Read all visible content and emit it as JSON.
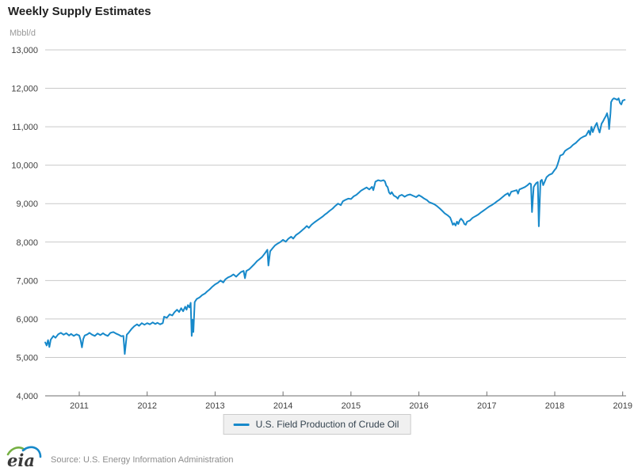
{
  "page": {
    "title": "Weekly Supply Estimates",
    "unit": "Mbbl/d",
    "logo_text": "eia",
    "source": "Source: U.S. Energy Information Administration"
  },
  "legend": {
    "items": [
      {
        "label": "U.S. Field Production of Crude Oil",
        "color": "#1789ca"
      }
    ]
  },
  "colors": {
    "line": "#1789ca",
    "grid": "#c9c9c9",
    "axis": "#6e6e6e",
    "tick_label": "#404040",
    "legend_bg": "#f0f0f0",
    "source_text": "#8c8c8c",
    "logo_green": "#76b043",
    "logo_blue": "#1789ca"
  },
  "chart_data": {
    "type": "line",
    "title": "Weekly Supply Estimates",
    "ylabel": "Mbbl/d",
    "xlabel": "",
    "grid": true,
    "legend_position": "bottom-center",
    "xlim": [
      2010.5,
      2019.1
    ],
    "ylim": [
      4000,
      13000
    ],
    "x_ticks": [
      2011,
      2012,
      2013,
      2014,
      2015,
      2016,
      2017,
      2018,
      2019
    ],
    "y_ticks": [
      4000,
      5000,
      6000,
      7000,
      8000,
      9000,
      10000,
      11000,
      12000,
      13000
    ],
    "series": [
      {
        "name": "U.S. Field Production of Crude Oil",
        "color": "#1789ca",
        "points": [
          [
            2010.5,
            5390
          ],
          [
            2010.52,
            5310
          ],
          [
            2010.54,
            5450
          ],
          [
            2010.56,
            5270
          ],
          [
            2010.58,
            5460
          ],
          [
            2010.62,
            5560
          ],
          [
            2010.65,
            5510
          ],
          [
            2010.69,
            5600
          ],
          [
            2010.73,
            5640
          ],
          [
            2010.77,
            5590
          ],
          [
            2010.81,
            5630
          ],
          [
            2010.85,
            5570
          ],
          [
            2010.88,
            5610
          ],
          [
            2010.92,
            5560
          ],
          [
            2010.96,
            5600
          ],
          [
            2011.0,
            5570
          ],
          [
            2011.02,
            5450
          ],
          [
            2011.04,
            5260
          ],
          [
            2011.06,
            5480
          ],
          [
            2011.08,
            5570
          ],
          [
            2011.12,
            5600
          ],
          [
            2011.15,
            5640
          ],
          [
            2011.19,
            5590
          ],
          [
            2011.23,
            5560
          ],
          [
            2011.27,
            5620
          ],
          [
            2011.31,
            5580
          ],
          [
            2011.35,
            5630
          ],
          [
            2011.38,
            5590
          ],
          [
            2011.42,
            5560
          ],
          [
            2011.46,
            5640
          ],
          [
            2011.5,
            5660
          ],
          [
            2011.54,
            5620
          ],
          [
            2011.58,
            5590
          ],
          [
            2011.62,
            5550
          ],
          [
            2011.65,
            5560
          ],
          [
            2011.67,
            5090
          ],
          [
            2011.7,
            5590
          ],
          [
            2011.73,
            5650
          ],
          [
            2011.77,
            5740
          ],
          [
            2011.81,
            5810
          ],
          [
            2011.85,
            5860
          ],
          [
            2011.88,
            5820
          ],
          [
            2011.92,
            5890
          ],
          [
            2011.96,
            5850
          ],
          [
            2012.0,
            5890
          ],
          [
            2012.04,
            5860
          ],
          [
            2012.08,
            5910
          ],
          [
            2012.12,
            5870
          ],
          [
            2012.15,
            5900
          ],
          [
            2012.19,
            5860
          ],
          [
            2012.23,
            5890
          ],
          [
            2012.25,
            6060
          ],
          [
            2012.29,
            6030
          ],
          [
            2012.33,
            6120
          ],
          [
            2012.37,
            6090
          ],
          [
            2012.4,
            6170
          ],
          [
            2012.44,
            6240
          ],
          [
            2012.47,
            6180
          ],
          [
            2012.5,
            6280
          ],
          [
            2012.53,
            6200
          ],
          [
            2012.56,
            6320
          ],
          [
            2012.58,
            6240
          ],
          [
            2012.6,
            6360
          ],
          [
            2012.62,
            6300
          ],
          [
            2012.64,
            6420
          ],
          [
            2012.655,
            5560
          ],
          [
            2012.67,
            5980
          ],
          [
            2012.68,
            5660
          ],
          [
            2012.7,
            6440
          ],
          [
            2012.73,
            6520
          ],
          [
            2012.77,
            6560
          ],
          [
            2012.81,
            6620
          ],
          [
            2012.85,
            6660
          ],
          [
            2012.88,
            6710
          ],
          [
            2012.92,
            6770
          ],
          [
            2012.96,
            6840
          ],
          [
            2013.0,
            6900
          ],
          [
            2013.04,
            6940
          ],
          [
            2013.08,
            7000
          ],
          [
            2013.12,
            6950
          ],
          [
            2013.15,
            7030
          ],
          [
            2013.19,
            7080
          ],
          [
            2013.23,
            7110
          ],
          [
            2013.27,
            7160
          ],
          [
            2013.31,
            7100
          ],
          [
            2013.35,
            7170
          ],
          [
            2013.38,
            7220
          ],
          [
            2013.42,
            7250
          ],
          [
            2013.44,
            7060
          ],
          [
            2013.46,
            7250
          ],
          [
            2013.5,
            7290
          ],
          [
            2013.54,
            7360
          ],
          [
            2013.58,
            7430
          ],
          [
            2013.62,
            7510
          ],
          [
            2013.65,
            7550
          ],
          [
            2013.69,
            7610
          ],
          [
            2013.73,
            7700
          ],
          [
            2013.77,
            7800
          ],
          [
            2013.785,
            7390
          ],
          [
            2013.81,
            7760
          ],
          [
            2013.85,
            7850
          ],
          [
            2013.88,
            7910
          ],
          [
            2013.92,
            7960
          ],
          [
            2013.96,
            8000
          ],
          [
            2014.0,
            8060
          ],
          [
            2014.04,
            8010
          ],
          [
            2014.08,
            8090
          ],
          [
            2014.12,
            8140
          ],
          [
            2014.15,
            8090
          ],
          [
            2014.19,
            8180
          ],
          [
            2014.23,
            8230
          ],
          [
            2014.27,
            8290
          ],
          [
            2014.31,
            8350
          ],
          [
            2014.35,
            8420
          ],
          [
            2014.38,
            8370
          ],
          [
            2014.42,
            8450
          ],
          [
            2014.46,
            8510
          ],
          [
            2014.5,
            8560
          ],
          [
            2014.54,
            8610
          ],
          [
            2014.58,
            8660
          ],
          [
            2014.62,
            8720
          ],
          [
            2014.65,
            8760
          ],
          [
            2014.69,
            8820
          ],
          [
            2014.73,
            8870
          ],
          [
            2014.77,
            8940
          ],
          [
            2014.81,
            9000
          ],
          [
            2014.85,
            8960
          ],
          [
            2014.88,
            9060
          ],
          [
            2014.92,
            9100
          ],
          [
            2014.96,
            9130
          ],
          [
            2015.0,
            9120
          ],
          [
            2015.04,
            9190
          ],
          [
            2015.08,
            9230
          ],
          [
            2015.12,
            9290
          ],
          [
            2015.15,
            9340
          ],
          [
            2015.19,
            9380
          ],
          [
            2015.23,
            9420
          ],
          [
            2015.27,
            9370
          ],
          [
            2015.31,
            9440
          ],
          [
            2015.33,
            9350
          ],
          [
            2015.36,
            9570
          ],
          [
            2015.4,
            9610
          ],
          [
            2015.44,
            9590
          ],
          [
            2015.48,
            9610
          ],
          [
            2015.5,
            9580
          ],
          [
            2015.52,
            9470
          ],
          [
            2015.54,
            9430
          ],
          [
            2015.56,
            9290
          ],
          [
            2015.58,
            9250
          ],
          [
            2015.6,
            9300
          ],
          [
            2015.63,
            9210
          ],
          [
            2015.67,
            9170
          ],
          [
            2015.69,
            9130
          ],
          [
            2015.71,
            9200
          ],
          [
            2015.75,
            9230
          ],
          [
            2015.79,
            9180
          ],
          [
            2015.83,
            9220
          ],
          [
            2015.87,
            9240
          ],
          [
            2015.92,
            9200
          ],
          [
            2015.96,
            9170
          ],
          [
            2016.0,
            9220
          ],
          [
            2016.04,
            9180
          ],
          [
            2016.08,
            9130
          ],
          [
            2016.12,
            9090
          ],
          [
            2016.15,
            9040
          ],
          [
            2016.19,
            9010
          ],
          [
            2016.23,
            8980
          ],
          [
            2016.27,
            8930
          ],
          [
            2016.31,
            8870
          ],
          [
            2016.35,
            8800
          ],
          [
            2016.38,
            8750
          ],
          [
            2016.42,
            8700
          ],
          [
            2016.46,
            8640
          ],
          [
            2016.48,
            8550
          ],
          [
            2016.5,
            8450
          ],
          [
            2016.52,
            8490
          ],
          [
            2016.54,
            8430
          ],
          [
            2016.56,
            8530
          ],
          [
            2016.58,
            8470
          ],
          [
            2016.6,
            8560
          ],
          [
            2016.62,
            8610
          ],
          [
            2016.65,
            8550
          ],
          [
            2016.67,
            8470
          ],
          [
            2016.69,
            8450
          ],
          [
            2016.71,
            8530
          ],
          [
            2016.75,
            8560
          ],
          [
            2016.79,
            8630
          ],
          [
            2016.83,
            8670
          ],
          [
            2016.87,
            8710
          ],
          [
            2016.92,
            8780
          ],
          [
            2016.96,
            8830
          ],
          [
            2017.0,
            8880
          ],
          [
            2017.04,
            8930
          ],
          [
            2017.08,
            8970
          ],
          [
            2017.12,
            9020
          ],
          [
            2017.15,
            9060
          ],
          [
            2017.19,
            9110
          ],
          [
            2017.23,
            9170
          ],
          [
            2017.27,
            9230
          ],
          [
            2017.31,
            9270
          ],
          [
            2017.33,
            9200
          ],
          [
            2017.36,
            9310
          ],
          [
            2017.4,
            9330
          ],
          [
            2017.44,
            9350
          ],
          [
            2017.46,
            9260
          ],
          [
            2017.48,
            9370
          ],
          [
            2017.52,
            9400
          ],
          [
            2017.56,
            9430
          ],
          [
            2017.6,
            9480
          ],
          [
            2017.63,
            9530
          ],
          [
            2017.65,
            9510
          ],
          [
            2017.665,
            8780
          ],
          [
            2017.69,
            9430
          ],
          [
            2017.71,
            9490
          ],
          [
            2017.73,
            9540
          ],
          [
            2017.75,
            9560
          ],
          [
            2017.765,
            8410
          ],
          [
            2017.79,
            9590
          ],
          [
            2017.81,
            9620
          ],
          [
            2017.83,
            9480
          ],
          [
            2017.85,
            9560
          ],
          [
            2017.88,
            9690
          ],
          [
            2017.92,
            9750
          ],
          [
            2017.96,
            9780
          ],
          [
            2018.0,
            9880
          ],
          [
            2018.02,
            9920
          ],
          [
            2018.04,
            10010
          ],
          [
            2018.06,
            10120
          ],
          [
            2018.08,
            10250
          ],
          [
            2018.12,
            10280
          ],
          [
            2018.15,
            10370
          ],
          [
            2018.19,
            10420
          ],
          [
            2018.23,
            10460
          ],
          [
            2018.27,
            10530
          ],
          [
            2018.31,
            10580
          ],
          [
            2018.35,
            10650
          ],
          [
            2018.38,
            10700
          ],
          [
            2018.42,
            10740
          ],
          [
            2018.46,
            10770
          ],
          [
            2018.5,
            10900
          ],
          [
            2018.52,
            10790
          ],
          [
            2018.54,
            11000
          ],
          [
            2018.56,
            10860
          ],
          [
            2018.58,
            10960
          ],
          [
            2018.6,
            11040
          ],
          [
            2018.62,
            11100
          ],
          [
            2018.64,
            10950
          ],
          [
            2018.66,
            10850
          ],
          [
            2018.69,
            11080
          ],
          [
            2018.71,
            11140
          ],
          [
            2018.73,
            11210
          ],
          [
            2018.75,
            11270
          ],
          [
            2018.77,
            11350
          ],
          [
            2018.79,
            11190
          ],
          [
            2018.8,
            10940
          ],
          [
            2018.82,
            11350
          ],
          [
            2018.83,
            11640
          ],
          [
            2018.85,
            11710
          ],
          [
            2018.87,
            11740
          ],
          [
            2018.9,
            11720
          ],
          [
            2018.92,
            11700
          ],
          [
            2018.94,
            11740
          ],
          [
            2018.96,
            11620
          ],
          [
            2018.98,
            11580
          ],
          [
            2019.0,
            11680
          ],
          [
            2019.03,
            11700
          ]
        ]
      }
    ]
  }
}
